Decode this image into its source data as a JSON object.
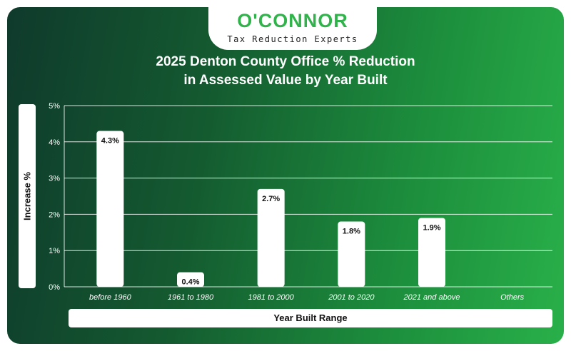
{
  "logo": {
    "name": "O'CONNOR",
    "tagline": "Tax Reduction Experts"
  },
  "chart_data": {
    "type": "bar",
    "title_line1": "2025 Denton County Office % Reduction",
    "title_line2": "in Assessed Value by Year Built",
    "xlabel": "Year Built Range",
    "ylabel": "Increase %",
    "categories": [
      "before 1960",
      "1961 to 1980",
      "1981 to 2000",
      "2001 to 2020",
      "2021 and above",
      "Others"
    ],
    "values": [
      4.3,
      0.4,
      2.7,
      1.8,
      1.9,
      null
    ],
    "data_labels": [
      "4.3%",
      "0.4%",
      "2.7%",
      "1.8%",
      "1.9%",
      ""
    ],
    "y_ticks": [
      "0%",
      "1%",
      "2%",
      "3%",
      "4%",
      "5%"
    ],
    "ylim": [
      0,
      5
    ],
    "grid": true,
    "colors": {
      "bar": "#ffffff",
      "grid": "#ffffff"
    }
  }
}
